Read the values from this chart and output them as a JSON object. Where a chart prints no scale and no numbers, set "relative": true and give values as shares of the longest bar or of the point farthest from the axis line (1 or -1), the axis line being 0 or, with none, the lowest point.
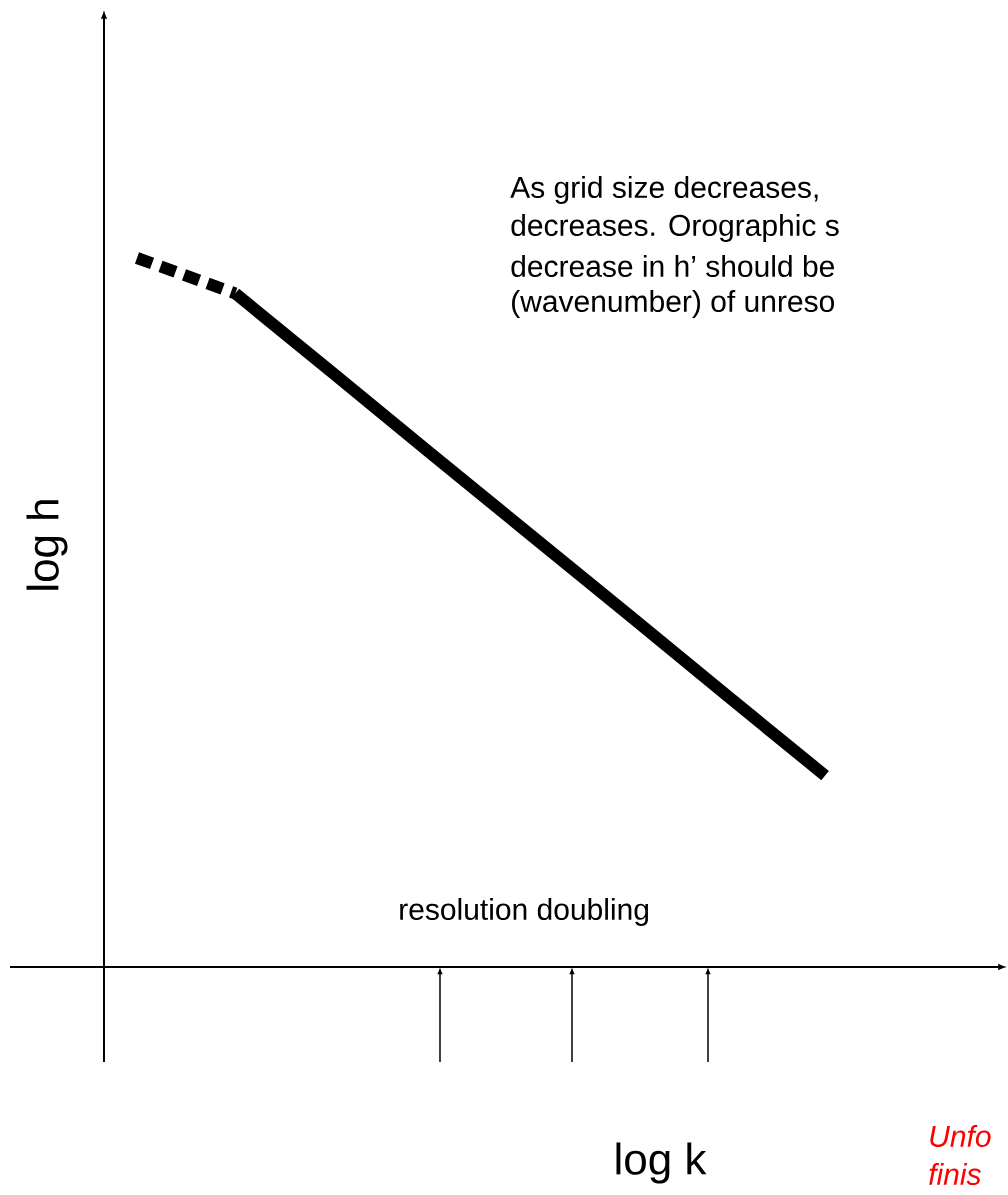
{
  "chart_data": {
    "type": "line",
    "relative": true,
    "xlabel": "log k",
    "ylabel": "log h",
    "categories": [
      null,
      null,
      null,
      null,
      null,
      null,
      null,
      null
    ],
    "series": [
      {
        "color": "#000000",
        "line_style": "dashed",
        "values": [
          1,
          0.95,
          null,
          null,
          null,
          null,
          null,
          null
        ]
      },
      {
        "color": "#000000",
        "line_style": "solid",
        "values": [
          null,
          0.95,
          0.837,
          0.723,
          0.61,
          0.497,
          0.383,
          0.27
        ]
      }
    ],
    "annotations": [
      "As grid size decreases,",
      "decreases. Orographic s",
      "decrease in h’ should be",
      "(wavenumber) of unreso",
      "resolution doubling",
      "Unfo",
      "finis"
    ],
    "marker": "none"
  }
}
